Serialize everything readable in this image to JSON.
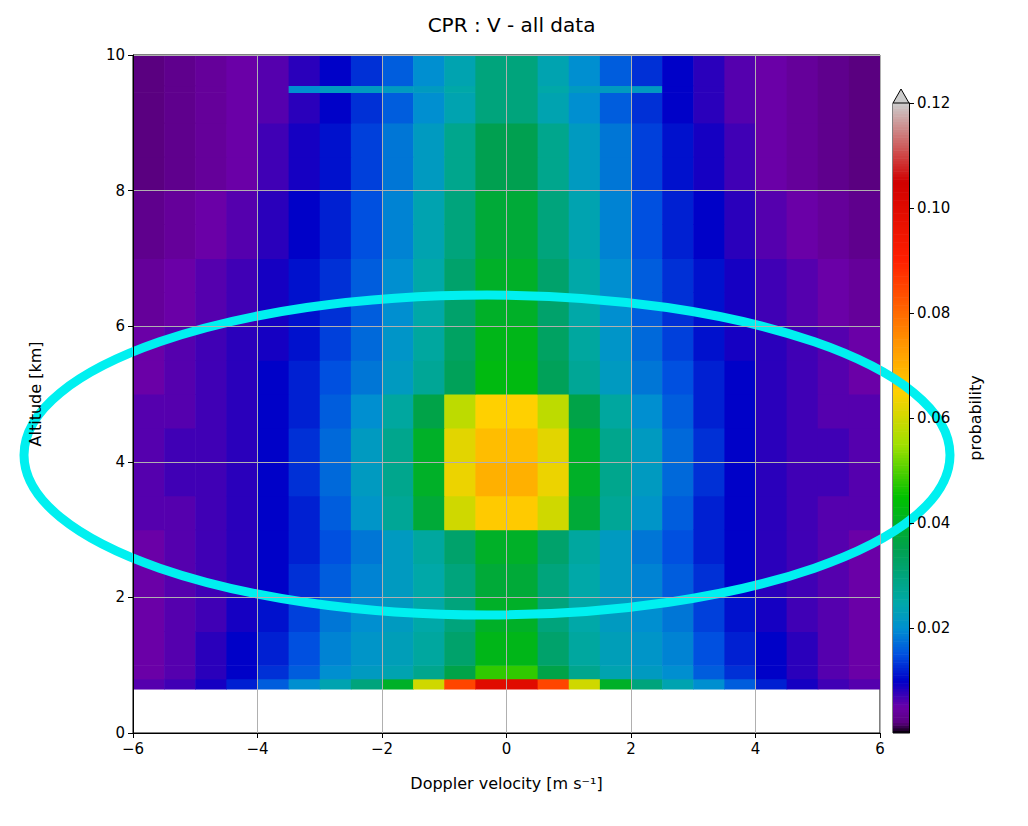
{
  "chart_data": {
    "type": "heatmap",
    "title": "CPR : V - all data",
    "x_label": "Doppler velocity [m s⁻¹]",
    "y_label": "Altitude [km]",
    "xlim": [
      -6,
      6
    ],
    "xticks": [
      {
        "value": -6,
        "label": "−6"
      },
      {
        "value": -4,
        "label": "−4"
      },
      {
        "value": -2,
        "label": "−2"
      },
      0,
      2,
      4,
      6
    ],
    "ylim": [
      0,
      10
    ],
    "yticks": [
      0,
      2,
      4,
      6,
      8,
      10
    ],
    "grid": true,
    "x_bins": [
      -6,
      -5.5,
      -5,
      -4.5,
      -4,
      -3.5,
      -3,
      -2.5,
      -2,
      -1.5,
      -1,
      -0.5,
      0,
      0.5,
      1,
      1.5,
      2,
      2.5,
      3,
      3.5,
      4,
      4.5,
      5,
      5.5,
      6
    ],
    "y_bins": [
      0.65,
      0.8,
      1.0,
      1.5,
      2.0,
      2.5,
      3.0,
      3.5,
      4.0,
      4.5,
      5.0,
      5.5,
      6.0,
      6.5,
      7.0,
      7.5,
      8.0,
      8.5,
      9.0,
      9.45,
      9.55,
      10.0
    ],
    "cells": [
      [
        0.006,
        0.007,
        0.009,
        0.012,
        0.016,
        0.02,
        0.024,
        0.03,
        0.04,
        0.06,
        0.085,
        0.1,
        0.1,
        0.085,
        0.06,
        0.04,
        0.03,
        0.024,
        0.02,
        0.016,
        0.012,
        0.009,
        0.007,
        0.006
      ],
      [
        0.005,
        0.006,
        0.008,
        0.01,
        0.013,
        0.016,
        0.02,
        0.022,
        0.024,
        0.028,
        0.036,
        0.048,
        0.048,
        0.036,
        0.028,
        0.024,
        0.022,
        0.02,
        0.016,
        0.013,
        0.01,
        0.008,
        0.006,
        0.005
      ],
      [
        0.005,
        0.006,
        0.008,
        0.01,
        0.012,
        0.015,
        0.019,
        0.021,
        0.023,
        0.026,
        0.032,
        0.042,
        0.042,
        0.032,
        0.026,
        0.023,
        0.021,
        0.019,
        0.015,
        0.012,
        0.01,
        0.008,
        0.006,
        0.005
      ],
      [
        0.005,
        0.006,
        0.007,
        0.009,
        0.011,
        0.014,
        0.018,
        0.02,
        0.022,
        0.025,
        0.03,
        0.04,
        0.04,
        0.03,
        0.025,
        0.022,
        0.02,
        0.018,
        0.014,
        0.011,
        0.009,
        0.007,
        0.006,
        0.005
      ],
      [
        0.005,
        0.006,
        0.007,
        0.008,
        0.01,
        0.013,
        0.016,
        0.019,
        0.022,
        0.025,
        0.03,
        0.038,
        0.038,
        0.03,
        0.025,
        0.022,
        0.019,
        0.016,
        0.013,
        0.01,
        0.008,
        0.007,
        0.006,
        0.005
      ],
      [
        0.005,
        0.006,
        0.007,
        0.008,
        0.01,
        0.012,
        0.015,
        0.018,
        0.022,
        0.026,
        0.032,
        0.04,
        0.04,
        0.032,
        0.026,
        0.022,
        0.018,
        0.015,
        0.012,
        0.01,
        0.008,
        0.007,
        0.006,
        0.005
      ],
      [
        0.006,
        0.006,
        0.007,
        0.008,
        0.01,
        0.012,
        0.016,
        0.021,
        0.027,
        0.038,
        0.06,
        0.066,
        0.066,
        0.06,
        0.038,
        0.027,
        0.021,
        0.016,
        0.012,
        0.01,
        0.008,
        0.007,
        0.006,
        0.006
      ],
      [
        0.006,
        0.007,
        0.007,
        0.008,
        0.01,
        0.013,
        0.017,
        0.022,
        0.028,
        0.04,
        0.063,
        0.07,
        0.07,
        0.063,
        0.04,
        0.028,
        0.022,
        0.017,
        0.013,
        0.01,
        0.008,
        0.007,
        0.007,
        0.006
      ],
      [
        0.006,
        0.007,
        0.007,
        0.008,
        0.01,
        0.013,
        0.017,
        0.022,
        0.028,
        0.04,
        0.062,
        0.068,
        0.068,
        0.062,
        0.04,
        0.028,
        0.022,
        0.017,
        0.013,
        0.01,
        0.008,
        0.007,
        0.007,
        0.006
      ],
      [
        0.006,
        0.006,
        0.007,
        0.008,
        0.01,
        0.012,
        0.016,
        0.02,
        0.026,
        0.036,
        0.058,
        0.065,
        0.065,
        0.058,
        0.036,
        0.026,
        0.02,
        0.016,
        0.012,
        0.01,
        0.008,
        0.007,
        0.006,
        0.006
      ],
      [
        0.005,
        0.006,
        0.007,
        0.008,
        0.01,
        0.012,
        0.015,
        0.018,
        0.022,
        0.027,
        0.034,
        0.043,
        0.043,
        0.034,
        0.027,
        0.022,
        0.018,
        0.015,
        0.012,
        0.01,
        0.008,
        0.007,
        0.006,
        0.005
      ],
      [
        0.005,
        0.006,
        0.007,
        0.008,
        0.009,
        0.011,
        0.014,
        0.017,
        0.021,
        0.026,
        0.033,
        0.042,
        0.042,
        0.033,
        0.026,
        0.021,
        0.017,
        0.014,
        0.011,
        0.009,
        0.008,
        0.007,
        0.006,
        0.005
      ],
      [
        0.004,
        0.005,
        0.006,
        0.007,
        0.009,
        0.011,
        0.013,
        0.016,
        0.02,
        0.025,
        0.032,
        0.04,
        0.04,
        0.032,
        0.025,
        0.02,
        0.016,
        0.013,
        0.011,
        0.009,
        0.007,
        0.006,
        0.005,
        0.004
      ],
      [
        0.004,
        0.005,
        0.006,
        0.007,
        0.009,
        0.011,
        0.013,
        0.016,
        0.02,
        0.025,
        0.032,
        0.04,
        0.04,
        0.032,
        0.025,
        0.02,
        0.016,
        0.013,
        0.011,
        0.009,
        0.007,
        0.006,
        0.005,
        0.004
      ],
      [
        0.003,
        0.004,
        0.005,
        0.006,
        0.008,
        0.01,
        0.012,
        0.015,
        0.019,
        0.024,
        0.03,
        0.038,
        0.038,
        0.03,
        0.024,
        0.019,
        0.015,
        0.012,
        0.01,
        0.008,
        0.006,
        0.005,
        0.004,
        0.003
      ],
      [
        0.003,
        0.004,
        0.005,
        0.006,
        0.008,
        0.01,
        0.012,
        0.015,
        0.019,
        0.024,
        0.03,
        0.038,
        0.038,
        0.03,
        0.024,
        0.019,
        0.015,
        0.012,
        0.01,
        0.008,
        0.006,
        0.005,
        0.004,
        0.003
      ],
      [
        0.002,
        0.003,
        0.004,
        0.005,
        0.007,
        0.009,
        0.011,
        0.014,
        0.018,
        0.022,
        0.028,
        0.035,
        0.035,
        0.028,
        0.022,
        0.018,
        0.014,
        0.011,
        0.009,
        0.007,
        0.005,
        0.004,
        0.003,
        0.002
      ],
      [
        0.002,
        0.003,
        0.004,
        0.005,
        0.007,
        0.009,
        0.011,
        0.014,
        0.018,
        0.022,
        0.028,
        0.035,
        0.035,
        0.028,
        0.022,
        0.018,
        0.014,
        0.011,
        0.009,
        0.007,
        0.005,
        0.004,
        0.003,
        0.002
      ],
      [
        0.002,
        0.003,
        0.004,
        0.005,
        0.006,
        0.008,
        0.01,
        0.013,
        0.016,
        0.02,
        0.024,
        0.03,
        0.03,
        0.024,
        0.02,
        0.016,
        0.013,
        0.01,
        0.008,
        0.006,
        0.005,
        0.004,
        0.003,
        0.002
      ],
      [
        0.002,
        0.003,
        0.004,
        0.005,
        0.006,
        0.02,
        0.022,
        0.022,
        0.022,
        0.022,
        0.025,
        0.03,
        0.03,
        0.025,
        0.022,
        0.022,
        0.022,
        0.01,
        0.008,
        0.006,
        0.005,
        0.004,
        0.003,
        0.002
      ],
      [
        0.002,
        0.003,
        0.004,
        0.005,
        0.006,
        0.008,
        0.01,
        0.013,
        0.016,
        0.02,
        0.024,
        0.03,
        0.03,
        0.024,
        0.02,
        0.016,
        0.013,
        0.01,
        0.008,
        0.006,
        0.005,
        0.004,
        0.003,
        0.002
      ]
    ],
    "colorbar_label": "probability",
    "colorbar_range": [
      0,
      0.12
    ],
    "colorbar_ticks": [
      0.02,
      0.04,
      0.06,
      0.08,
      {
        "value": 0.1,
        "label": "0.10"
      },
      0.12
    ]
  }
}
